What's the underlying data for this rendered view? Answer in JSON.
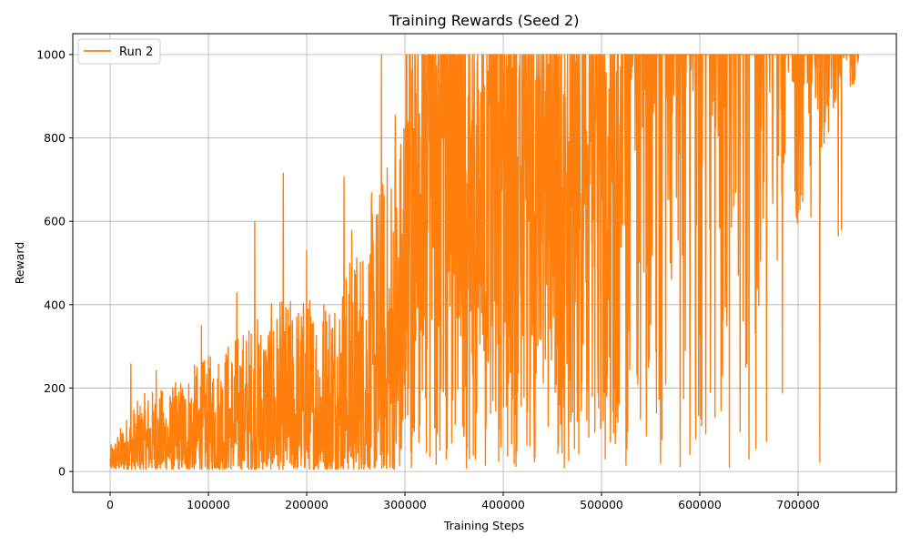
{
  "chart_data": {
    "type": "line",
    "title": "Training Rewards (Seed 2)",
    "xlabel": "Training Steps",
    "ylabel": "Reward",
    "xlim": [
      -38000,
      800000
    ],
    "ylim": [
      -50,
      1050
    ],
    "xticks": [
      0,
      100000,
      200000,
      300000,
      400000,
      500000,
      600000,
      700000
    ],
    "xtick_labels": [
      "0",
      "100000",
      "200000",
      "300000",
      "400000",
      "500000",
      "600000",
      "700000"
    ],
    "yticks": [
      0,
      200,
      400,
      600,
      800,
      1000
    ],
    "ytick_labels": [
      "0",
      "200",
      "400",
      "600",
      "800",
      "1000"
    ],
    "grid": true,
    "legend_position": "top-left",
    "colors": {
      "series": "#ff7f0e",
      "grid": "#b0b0b0",
      "axes": "#000000"
    },
    "series": [
      {
        "name": "Run 2",
        "x_max": 762000,
        "approx_envelope": [
          {
            "x": 0,
            "low": 5,
            "high": 60
          },
          {
            "x": 20000,
            "low": 5,
            "high": 150
          },
          {
            "x": 40000,
            "low": 5,
            "high": 200
          },
          {
            "x": 60000,
            "low": 5,
            "high": 200
          },
          {
            "x": 80000,
            "low": 5,
            "high": 250
          },
          {
            "x": 100000,
            "low": 5,
            "high": 280
          },
          {
            "x": 120000,
            "low": 5,
            "high": 320
          },
          {
            "x": 140000,
            "low": 5,
            "high": 360
          },
          {
            "x": 160000,
            "low": 5,
            "high": 400
          },
          {
            "x": 180000,
            "low": 5,
            "high": 420
          },
          {
            "x": 200000,
            "low": 5,
            "high": 430
          },
          {
            "x": 220000,
            "low": 5,
            "high": 450
          },
          {
            "x": 240000,
            "low": 5,
            "high": 500
          },
          {
            "x": 260000,
            "low": 5,
            "high": 600
          },
          {
            "x": 280000,
            "low": 5,
            "high": 750
          },
          {
            "x": 300000,
            "low": 5,
            "high": 900
          },
          {
            "x": 320000,
            "low": 5,
            "high": 1000
          },
          {
            "x": 360000,
            "low": 5,
            "high": 1000
          },
          {
            "x": 400000,
            "low": 5,
            "high": 1000
          },
          {
            "x": 440000,
            "low": 5,
            "high": 1000
          },
          {
            "x": 480000,
            "low": 5,
            "high": 1000
          },
          {
            "x": 520000,
            "low": 10,
            "high": 1000
          },
          {
            "x": 560000,
            "low": 20,
            "high": 1000
          },
          {
            "x": 600000,
            "low": 50,
            "high": 1000
          },
          {
            "x": 640000,
            "low": 200,
            "high": 1000
          },
          {
            "x": 700000,
            "low": 600,
            "high": 1000
          },
          {
            "x": 762000,
            "low": 950,
            "high": 1000
          }
        ],
        "peaks": [
          {
            "x": 21000,
            "y": 258
          },
          {
            "x": 47000,
            "y": 242
          },
          {
            "x": 93000,
            "y": 349
          },
          {
            "x": 129000,
            "y": 428
          },
          {
            "x": 147000,
            "y": 598
          },
          {
            "x": 176000,
            "y": 715
          },
          {
            "x": 200000,
            "y": 530
          },
          {
            "x": 238000,
            "y": 706
          },
          {
            "x": 246000,
            "y": 578
          },
          {
            "x": 266000,
            "y": 668
          },
          {
            "x": 276000,
            "y": 1000
          },
          {
            "x": 290000,
            "y": 855
          },
          {
            "x": 299000,
            "y": 822
          },
          {
            "x": 307000,
            "y": 963
          },
          {
            "x": 322000,
            "y": 997
          },
          {
            "x": 352000,
            "y": 1000
          },
          {
            "x": 365000,
            "y": 1000
          },
          {
            "x": 398000,
            "y": 1000
          },
          {
            "x": 425000,
            "y": 1000
          }
        ],
        "late_dips": [
          {
            "x": 560000,
            "y": 20
          },
          {
            "x": 580000,
            "y": 12
          },
          {
            "x": 590000,
            "y": 40
          },
          {
            "x": 606000,
            "y": 90
          },
          {
            "x": 630000,
            "y": 10
          },
          {
            "x": 641000,
            "y": 95
          },
          {
            "x": 650000,
            "y": 30
          },
          {
            "x": 657000,
            "y": 55
          },
          {
            "x": 668000,
            "y": 72
          },
          {
            "x": 684000,
            "y": 188
          },
          {
            "x": 706000,
            "y": 930
          },
          {
            "x": 713000,
            "y": 610
          },
          {
            "x": 722000,
            "y": 22
          },
          {
            "x": 738000,
            "y": 925
          },
          {
            "x": 741000,
            "y": 565
          },
          {
            "x": 744000,
            "y": 580
          }
        ]
      }
    ]
  }
}
